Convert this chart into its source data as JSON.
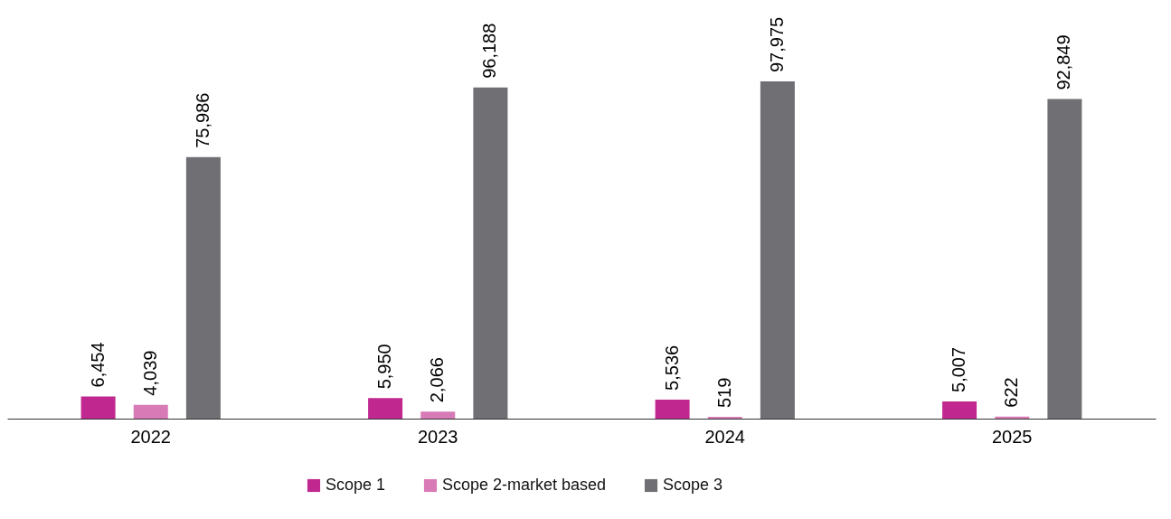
{
  "chart_data": {
    "type": "bar",
    "categories": [
      "2022",
      "2023",
      "2024",
      "2025"
    ],
    "series": [
      {
        "name": "Scope 1",
        "color": "#c0288f",
        "values": [
          6454,
          5950,
          5536,
          5007
        ],
        "value_labels": [
          "6,454",
          "5,950",
          "5,536",
          "5,007"
        ]
      },
      {
        "name": "Scope 2-market based",
        "color": "#d77ab5",
        "values": [
          4039,
          2066,
          519,
          622
        ],
        "value_labels": [
          "4,039",
          "2,066",
          "519",
          "622"
        ]
      },
      {
        "name": "Scope 3",
        "color": "#6f6f74",
        "values": [
          75986,
          96188,
          97975,
          92849
        ],
        "value_labels": [
          "75,986",
          "96,188",
          "97,975",
          "92,849"
        ]
      }
    ],
    "legend": "bottom",
    "grid": false
  }
}
